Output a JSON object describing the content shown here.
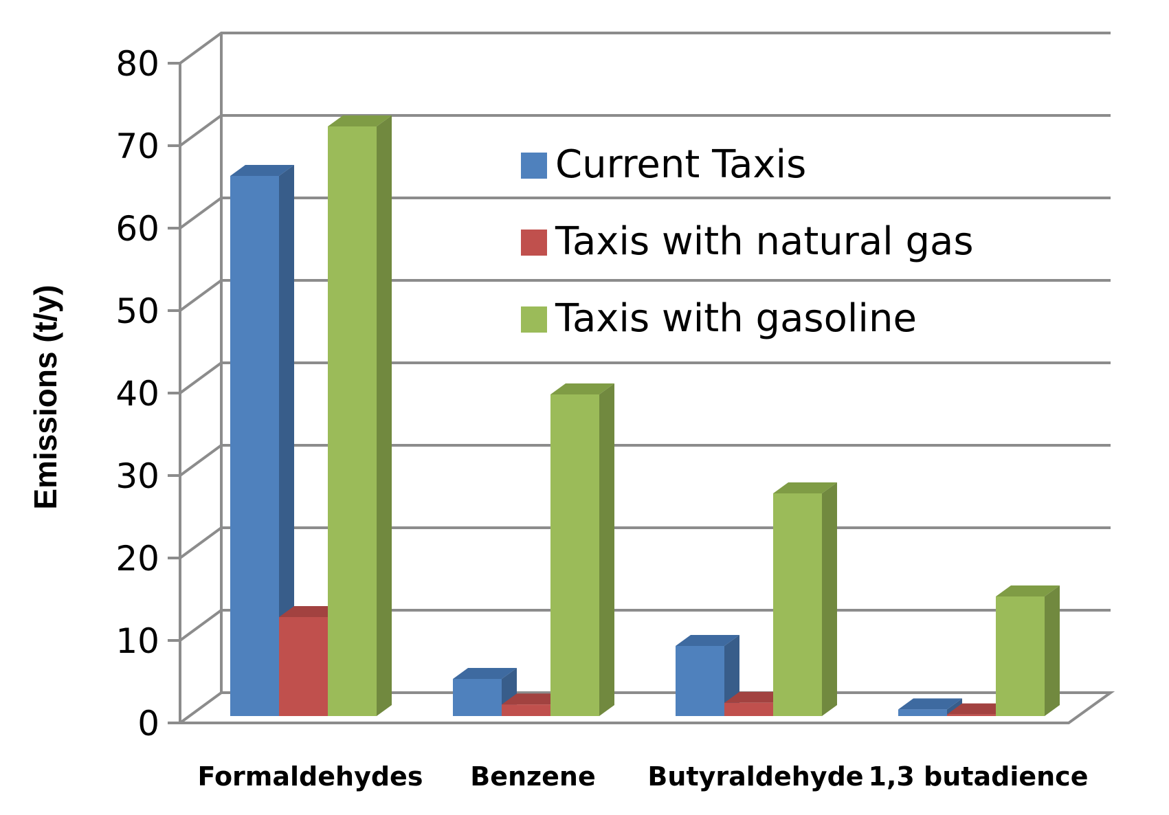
{
  "chart_data": {
    "type": "bar",
    "title": "",
    "xlabel": "",
    "ylabel": "Emissions (t/y)",
    "ylim": [
      0,
      80
    ],
    "yticks": [
      0,
      10,
      20,
      30,
      40,
      50,
      60,
      70,
      80
    ],
    "categories": [
      "Formaldehydes",
      "Benzene",
      "Butyraldehyde",
      "1,3 butadience"
    ],
    "series": [
      {
        "name": "Current Taxis",
        "values": [
          65.5,
          4.5,
          8.5,
          0.8
        ],
        "color": "#4F81BD",
        "side_color": "#385D8A",
        "top_color": "#3E6AA0"
      },
      {
        "name": "Taxis with natural gas",
        "values": [
          12,
          1.4,
          1.6,
          0.2
        ],
        "color": "#C0504D",
        "side_color": "#8C3836",
        "top_color": "#A24240"
      },
      {
        "name": "Taxis with gasoline",
        "values": [
          71.5,
          39,
          27,
          14.5
        ],
        "color": "#9BBB59",
        "side_color": "#71893F",
        "top_color": "#7F9C45"
      }
    ],
    "grid": true,
    "legend_position": "top-right",
    "style": "3d-clustered-column"
  }
}
